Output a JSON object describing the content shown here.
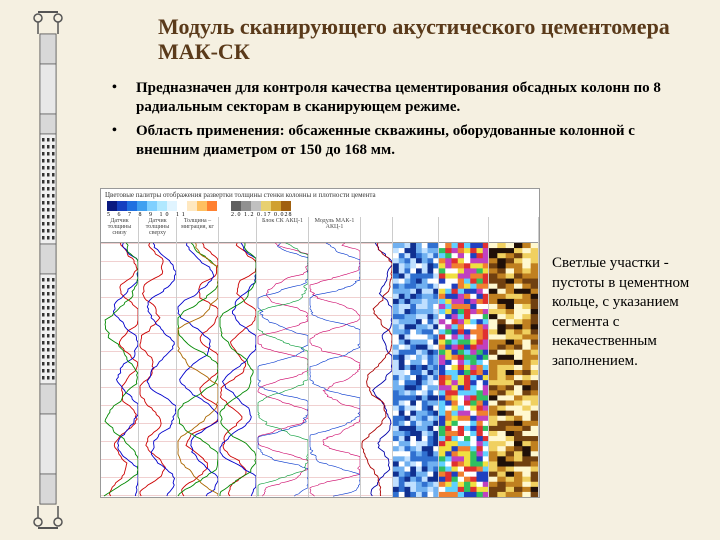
{
  "title": "Модуль сканирующего акустического цементомера МАК-СК",
  "bullets": [
    "Предназначен для контроля качества цементирования обсадных колонн по 8 радиальным секторам в сканирующем режиме.",
    "Область применения: обсаженные скважины, оборудованные колонной с внешним диаметром от 150 до 168 мм."
  ],
  "side_caption": "Светлые участки - пустоты в цементном кольце, с указанием сегмента с некачественным заполнением.",
  "palette_title": "Цветовые палитры отображения развертки толщины стенки колонны и плотности цемента",
  "palette1": [
    "#0a1a80",
    "#1540c0",
    "#2070e0",
    "#40a0f0",
    "#80d0ff",
    "#b0e8ff",
    "#e0f4ff",
    "#ffffff",
    "#ffe8c0",
    "#ffc060",
    "#ff8030"
  ],
  "palette1_labels": "5  6  7  8  9  10 11",
  "palette2": [
    "#606060",
    "#909090",
    "#c0c0c0",
    "#e8d070",
    "#d0a030",
    "#a06010"
  ],
  "palette2_labels": "2.0  1.2  0.17  0.028",
  "header_columns": [
    {
      "w": 38,
      "label": "Датчик толщины снизу"
    },
    {
      "w": 38,
      "label": "Датчик толщины сверху"
    },
    {
      "w": 42,
      "label": "Толщина – миграция, кг"
    },
    {
      "w": 38,
      "label": ""
    },
    {
      "w": 52,
      "label": "Блок СК\nАКЦ-1"
    },
    {
      "w": 52,
      "label": "Модуль МАК-1\nАКЦ-1"
    },
    {
      "w": 32,
      "label": ""
    },
    {
      "w": 46,
      "label": ""
    },
    {
      "w": 50,
      "label": ""
    },
    {
      "w": 50,
      "label": ""
    }
  ],
  "tracks": [
    {
      "w": 38,
      "type": "wiggle",
      "colors": [
        "#cc0000",
        "#0000cc",
        "#008800"
      ],
      "amp": 14,
      "freq": 60
    },
    {
      "w": 38,
      "type": "wiggle",
      "colors": [
        "#cc0000",
        "#0000cc"
      ],
      "amp": 16,
      "freq": 55
    },
    {
      "w": 42,
      "type": "wiggle",
      "colors": [
        "#cc0000",
        "#0000cc",
        "#008800",
        "#aa6600"
      ],
      "amp": 20,
      "freq": 70
    },
    {
      "w": 38,
      "type": "wiggle",
      "colors": [
        "#cc0000",
        "#0000cc",
        "#008800"
      ],
      "amp": 18,
      "freq": 65
    },
    {
      "w": 52,
      "type": "dense",
      "colors": [
        "#cc0066",
        "#0033cc",
        "#009933"
      ],
      "amp": 24,
      "freq": 120
    },
    {
      "w": 52,
      "type": "dense",
      "colors": [
        "#cc0066",
        "#0033cc"
      ],
      "amp": 24,
      "freq": 115
    },
    {
      "w": 32,
      "type": "curve",
      "colors": [
        "#0000aa",
        "#aa0000"
      ],
      "amp": 12,
      "freq": 40
    },
    {
      "w": 46,
      "type": "image_blue"
    },
    {
      "w": 50,
      "type": "image_rainbow"
    },
    {
      "w": 50,
      "type": "image_amber"
    }
  ],
  "tool": {
    "body_fill": "#e0e0e0",
    "body_stroke": "#555",
    "slot_fill": "#222"
  }
}
